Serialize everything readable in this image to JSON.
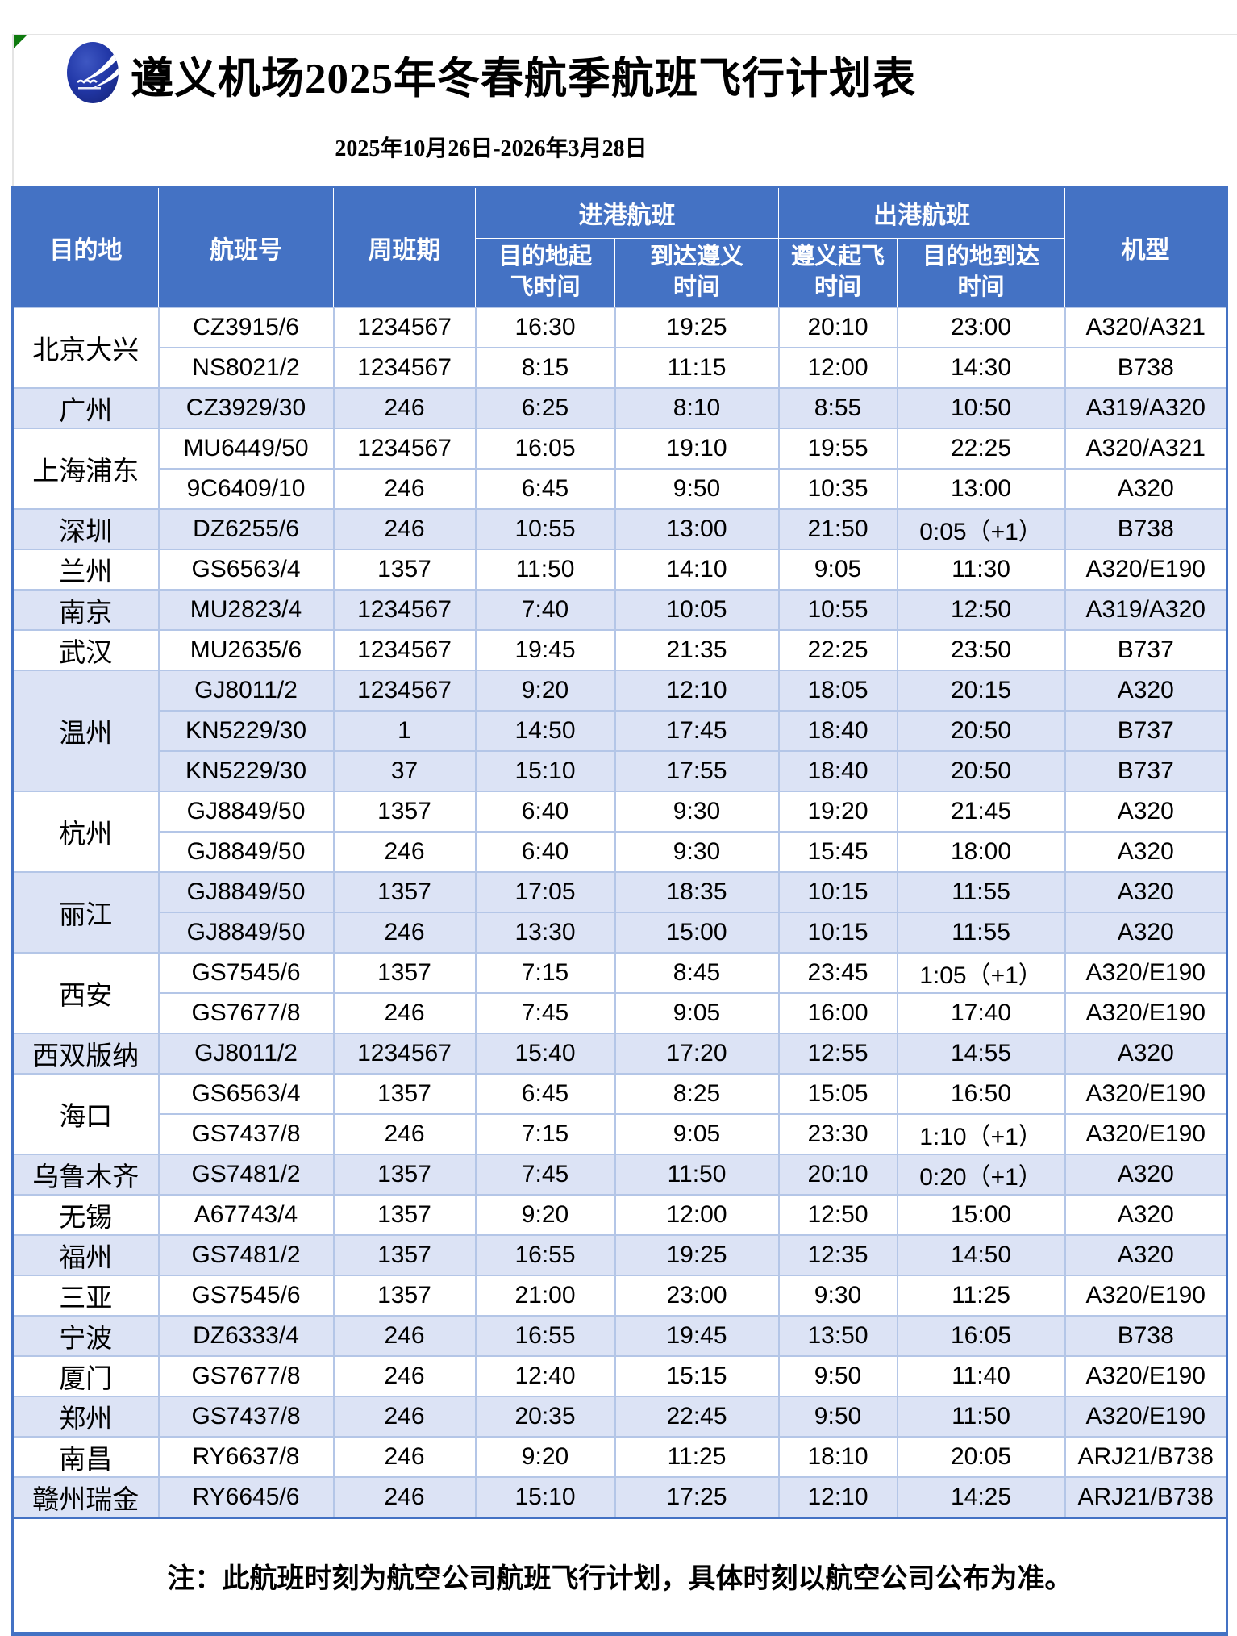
{
  "title": "遵义机场2025年冬春航季航班飞行计划表",
  "subtitle": "2025年10月26日-2026年3月28日",
  "header": {
    "destination": "目的地",
    "flight_no": "航班号",
    "weekly": "周班期",
    "inbound_group": "进港航班",
    "outbound_group": "出港航班",
    "aircraft": "机型",
    "inbound_dep": "目的地起\n飞时间",
    "inbound_arr": "到达遵义\n时间",
    "outbound_dep": "遵义起飞\n时间",
    "outbound_arr": "目的地到达\n时间"
  },
  "columns_keys": [
    "flight_no",
    "days",
    "in_dep",
    "in_arr",
    "out_dep",
    "out_arr",
    "aircraft"
  ],
  "groups": [
    {
      "destination": "北京大兴",
      "flights": [
        {
          "flight_no": "CZ3915/6",
          "days": "1234567",
          "in_dep": "16:30",
          "in_arr": "19:25",
          "out_dep": "20:10",
          "out_arr": "23:00",
          "aircraft": "A320/A321"
        },
        {
          "flight_no": "NS8021/2",
          "days": "1234567",
          "in_dep": "8:15",
          "in_arr": "11:15",
          "out_dep": "12:00",
          "out_arr": "14:30",
          "aircraft": "B738"
        }
      ]
    },
    {
      "destination": "广州",
      "flights": [
        {
          "flight_no": "CZ3929/30",
          "days": "246",
          "in_dep": "6:25",
          "in_arr": "8:10",
          "out_dep": "8:55",
          "out_arr": "10:50",
          "aircraft": "A319/A320"
        }
      ]
    },
    {
      "destination": "上海浦东",
      "flights": [
        {
          "flight_no": "MU6449/50",
          "days": "1234567",
          "in_dep": "16:05",
          "in_arr": "19:10",
          "out_dep": "19:55",
          "out_arr": "22:25",
          "aircraft": "A320/A321"
        },
        {
          "flight_no": "9C6409/10",
          "days": "246",
          "in_dep": "6:45",
          "in_arr": "9:50",
          "out_dep": "10:35",
          "out_arr": "13:00",
          "aircraft": "A320"
        }
      ]
    },
    {
      "destination": "深圳",
      "flights": [
        {
          "flight_no": "DZ6255/6",
          "days": "246",
          "in_dep": "10:55",
          "in_arr": "13:00",
          "out_dep": "21:50",
          "out_arr": "0:05（+1）",
          "aircraft": "B738"
        }
      ]
    },
    {
      "destination": "兰州",
      "flights": [
        {
          "flight_no": "GS6563/4",
          "days": "1357",
          "in_dep": "11:50",
          "in_arr": "14:10",
          "out_dep": "9:05",
          "out_arr": "11:30",
          "aircraft": "A320/E190"
        }
      ]
    },
    {
      "destination": "南京",
      "flights": [
        {
          "flight_no": "MU2823/4",
          "days": "1234567",
          "in_dep": "7:40",
          "in_arr": "10:05",
          "out_dep": "10:55",
          "out_arr": "12:50",
          "aircraft": "A319/A320"
        }
      ]
    },
    {
      "destination": "武汉",
      "flights": [
        {
          "flight_no": "MU2635/6",
          "days": "1234567",
          "in_dep": "19:45",
          "in_arr": "21:35",
          "out_dep": "22:25",
          "out_arr": "23:50",
          "aircraft": "B737"
        }
      ]
    },
    {
      "destination": "温州",
      "flights": [
        {
          "flight_no": "GJ8011/2",
          "days": "1234567",
          "in_dep": "9:20",
          "in_arr": "12:10",
          "out_dep": "18:05",
          "out_arr": "20:15",
          "aircraft": "A320"
        },
        {
          "flight_no": "KN5229/30",
          "days": "1",
          "in_dep": "14:50",
          "in_arr": "17:45",
          "out_dep": "18:40",
          "out_arr": "20:50",
          "aircraft": "B737"
        },
        {
          "flight_no": "KN5229/30",
          "days": "37",
          "in_dep": "15:10",
          "in_arr": "17:55",
          "out_dep": "18:40",
          "out_arr": "20:50",
          "aircraft": "B737"
        }
      ]
    },
    {
      "destination": "杭州",
      "flights": [
        {
          "flight_no": "GJ8849/50",
          "days": "1357",
          "in_dep": "6:40",
          "in_arr": "9:30",
          "out_dep": "19:20",
          "out_arr": "21:45",
          "aircraft": "A320"
        },
        {
          "flight_no": "GJ8849/50",
          "days": "246",
          "in_dep": "6:40",
          "in_arr": "9:30",
          "out_dep": "15:45",
          "out_arr": "18:00",
          "aircraft": "A320"
        }
      ]
    },
    {
      "destination": "丽江",
      "flights": [
        {
          "flight_no": "GJ8849/50",
          "days": "1357",
          "in_dep": "17:05",
          "in_arr": "18:35",
          "out_dep": "10:15",
          "out_arr": "11:55",
          "aircraft": "A320"
        },
        {
          "flight_no": "GJ8849/50",
          "days": "246",
          "in_dep": "13:30",
          "in_arr": "15:00",
          "out_dep": "10:15",
          "out_arr": "11:55",
          "aircraft": "A320"
        }
      ]
    },
    {
      "destination": "西安",
      "flights": [
        {
          "flight_no": "GS7545/6",
          "days": "1357",
          "in_dep": "7:15",
          "in_arr": "8:45",
          "out_dep": "23:45",
          "out_arr": "1:05（+1）",
          "aircraft": "A320/E190"
        },
        {
          "flight_no": "GS7677/8",
          "days": "246",
          "in_dep": "7:45",
          "in_arr": "9:05",
          "out_dep": "16:00",
          "out_arr": "17:40",
          "aircraft": "A320/E190"
        }
      ]
    },
    {
      "destination": "西双版纳",
      "flights": [
        {
          "flight_no": "GJ8011/2",
          "days": "1234567",
          "in_dep": "15:40",
          "in_arr": "17:20",
          "out_dep": "12:55",
          "out_arr": "14:55",
          "aircraft": "A320"
        }
      ]
    },
    {
      "destination": "海口",
      "flights": [
        {
          "flight_no": "GS6563/4",
          "days": "1357",
          "in_dep": "6:45",
          "in_arr": "8:25",
          "out_dep": "15:05",
          "out_arr": "16:50",
          "aircraft": "A320/E190"
        },
        {
          "flight_no": "GS7437/8",
          "days": "246",
          "in_dep": "7:15",
          "in_arr": "9:05",
          "out_dep": "23:30",
          "out_arr": "1:10（+1）",
          "aircraft": "A320/E190"
        }
      ]
    },
    {
      "destination": "乌鲁木齐",
      "flights": [
        {
          "flight_no": "GS7481/2",
          "days": "1357",
          "in_dep": "7:45",
          "in_arr": "11:50",
          "out_dep": "20:10",
          "out_arr": "0:20（+1）",
          "aircraft": "A320"
        }
      ]
    },
    {
      "destination": "无锡",
      "flights": [
        {
          "flight_no": "A67743/4",
          "days": "1357",
          "in_dep": "9:20",
          "in_arr": "12:00",
          "out_dep": "12:50",
          "out_arr": "15:00",
          "aircraft": "A320"
        }
      ]
    },
    {
      "destination": "福州",
      "flights": [
        {
          "flight_no": "GS7481/2",
          "days": "1357",
          "in_dep": "16:55",
          "in_arr": "19:25",
          "out_dep": "12:35",
          "out_arr": "14:50",
          "aircraft": "A320"
        }
      ]
    },
    {
      "destination": "三亚",
      "flights": [
        {
          "flight_no": "GS7545/6",
          "days": "1357",
          "in_dep": "21:00",
          "in_arr": "23:00",
          "out_dep": "9:30",
          "out_arr": "11:25",
          "aircraft": "A320/E190"
        }
      ]
    },
    {
      "destination": "宁波",
      "flights": [
        {
          "flight_no": "DZ6333/4",
          "days": "246",
          "in_dep": "16:55",
          "in_arr": "19:45",
          "out_dep": "13:50",
          "out_arr": "16:05",
          "aircraft": "B738"
        }
      ]
    },
    {
      "destination": "厦门",
      "flights": [
        {
          "flight_no": "GS7677/8",
          "days": "246",
          "in_dep": "12:40",
          "in_arr": "15:15",
          "out_dep": "9:50",
          "out_arr": "11:40",
          "aircraft": "A320/E190"
        }
      ]
    },
    {
      "destination": "郑州",
      "flights": [
        {
          "flight_no": "GS7437/8",
          "days": "246",
          "in_dep": "20:35",
          "in_arr": "22:45",
          "out_dep": "9:50",
          "out_arr": "11:50",
          "aircraft": "A320/E190"
        }
      ]
    },
    {
      "destination": "南昌",
      "flights": [
        {
          "flight_no": "RY6637/8",
          "days": "246",
          "in_dep": "9:20",
          "in_arr": "11:25",
          "out_dep": "18:10",
          "out_arr": "20:05",
          "aircraft": "ARJ21/B738"
        }
      ]
    },
    {
      "destination": "赣州瑞金",
      "flights": [
        {
          "flight_no": "RY6645/6",
          "days": "246",
          "in_dep": "15:10",
          "in_arr": "17:25",
          "out_dep": "12:10",
          "out_arr": "14:25",
          "aircraft": "ARJ21/B738"
        }
      ]
    }
  ],
  "note": "注：此航班时刻为航空公司航班飞行计划，具体时刻以航空公司公布为准。",
  "colors": {
    "header_bg": "#4472C4",
    "row_alt_bg": "#DCE3F5",
    "inner_border": "#B4C6E7",
    "outer_border": "#4472C4",
    "corner_flag": "#0e7a0e",
    "logo_blue": "#2238A8"
  }
}
